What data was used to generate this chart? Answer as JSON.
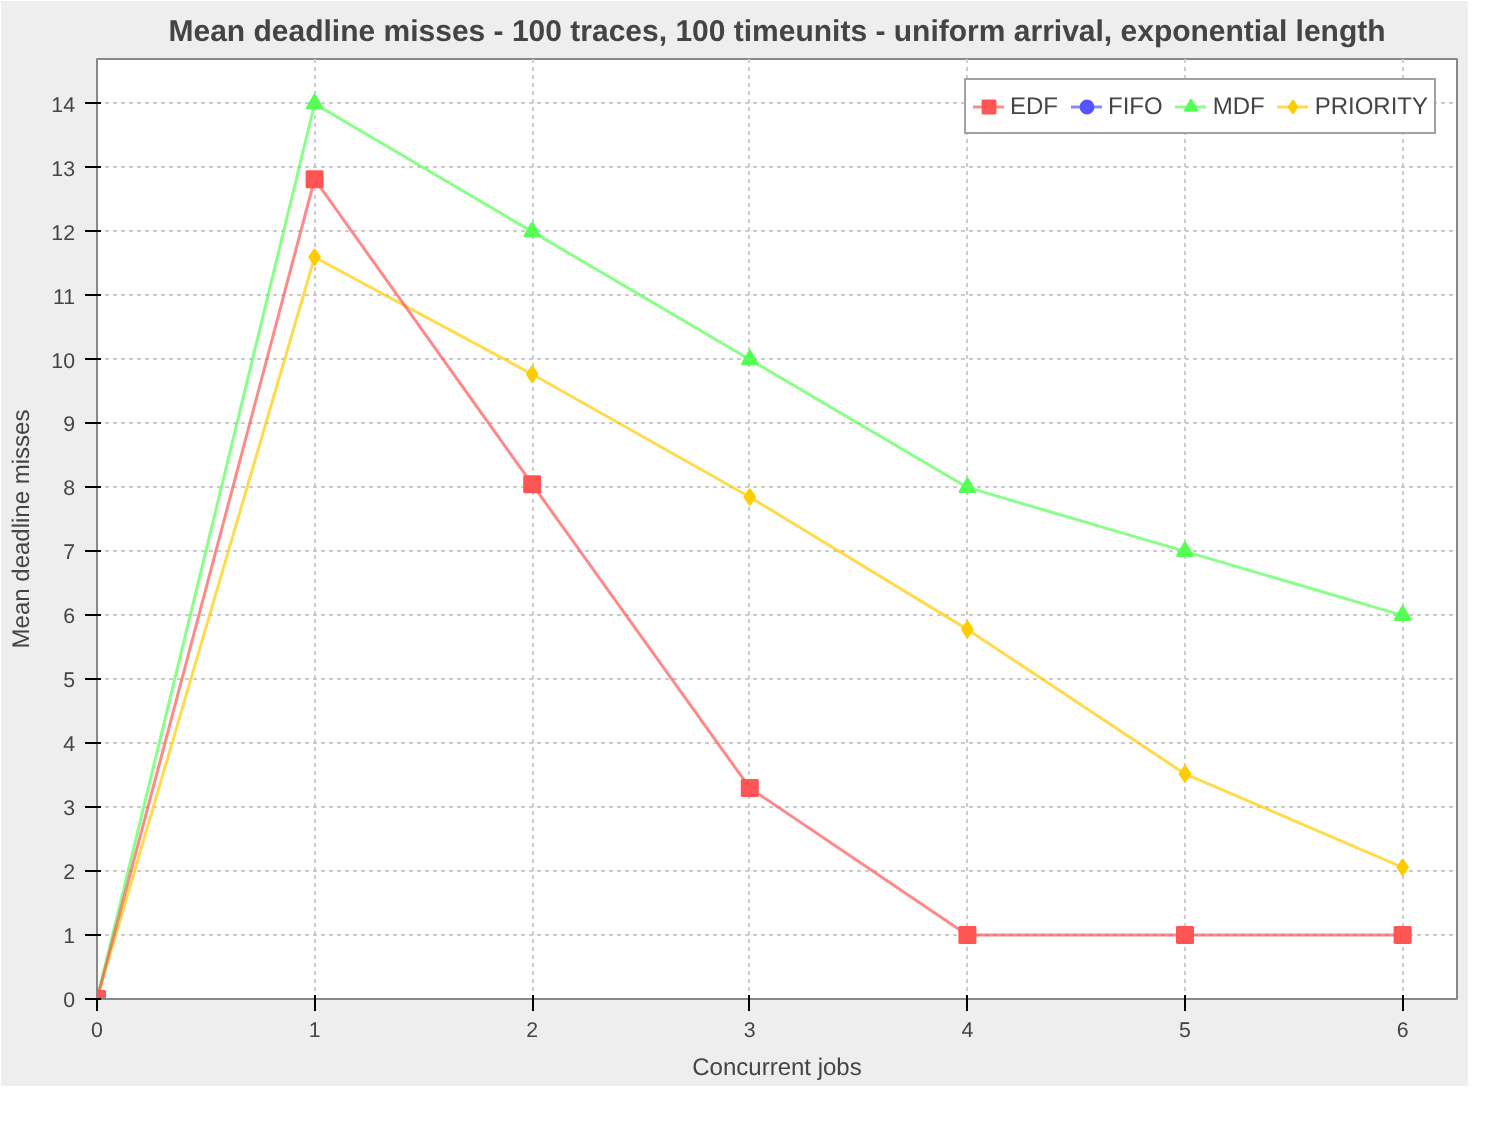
{
  "chart_data": {
    "type": "line",
    "title": "Mean deadline misses - 100 traces, 100 timeunits - uniform arrival, exponential length",
    "xlabel": "Concurrent jobs",
    "ylabel": "Mean deadline misses",
    "x": [
      0,
      1,
      2,
      3,
      4,
      5,
      6
    ],
    "series": [
      {
        "name": "EDF",
        "color": "#ff5555",
        "marker": "square",
        "values": [
          0,
          12.82,
          8.05,
          3.3,
          1,
          1,
          1
        ]
      },
      {
        "name": "FIFO",
        "color": "#5555ff",
        "marker": "circle",
        "values": [
          null,
          null,
          null,
          null,
          null,
          null,
          null
        ]
      },
      {
        "name": "MDF",
        "color": "#55ff55",
        "marker": "triangle",
        "values": [
          0,
          14,
          12,
          10,
          8,
          7,
          6
        ]
      },
      {
        "name": "PRIORITY",
        "color": "#ffcc00",
        "marker": "diamond",
        "values": [
          0,
          11.6,
          9.77,
          7.85,
          5.78,
          3.52,
          2.06
        ]
      }
    ],
    "xlim": [
      0,
      6.25
    ],
    "ylim": [
      0,
      14.7
    ],
    "xticks": [
      0,
      1,
      2,
      3,
      4,
      5,
      6
    ],
    "yticks": [
      0,
      1,
      2,
      3,
      4,
      5,
      6,
      7,
      8,
      9,
      10,
      11,
      12,
      13,
      14
    ],
    "grid": true,
    "legend": "top right",
    "line_style": "solid"
  }
}
